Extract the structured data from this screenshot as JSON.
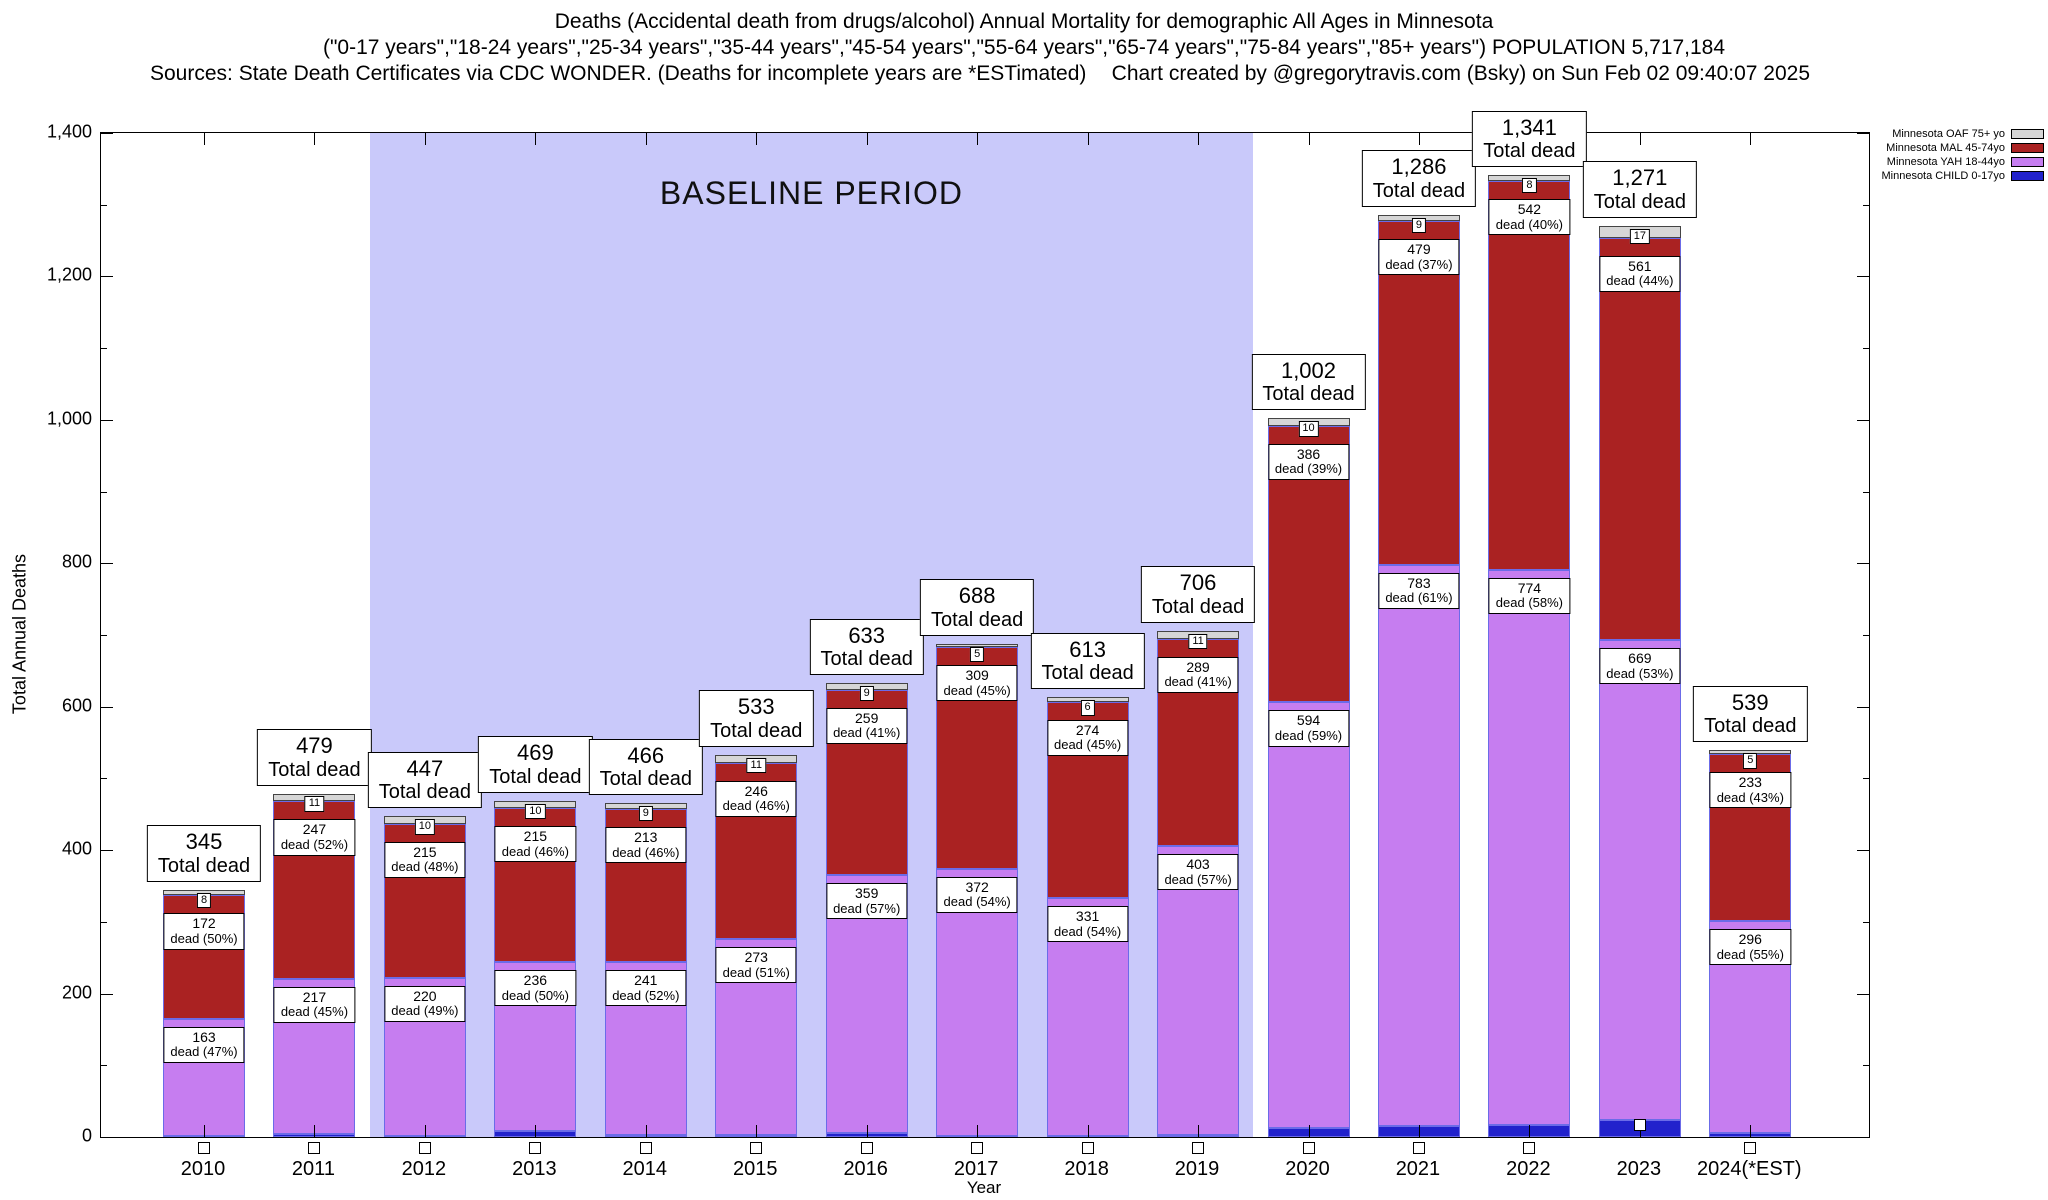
{
  "title": {
    "line1": "Deaths (Accidental death from drugs/alcohol) Annual Mortality for demographic All Ages in Minnesota",
    "line2": "(\"0-17 years\",\"18-24 years\",\"25-34 years\",\"35-44 years\",\"45-54 years\",\"55-64 years\",\"65-74 years\",\"75-84 years\",\"85+ years\") POPULATION 5,717,184",
    "line3_left": "Sources: State Death Certificates via CDC WONDER. (Deaths for incomplete years are *ESTimated)",
    "line3_right": "Chart created by @gregorytravis.com (Bsky) on Sun Feb 02 09:40:07 2025"
  },
  "chart_data": {
    "type": "bar",
    "stacked": true,
    "title": "Deaths (Accidental death from drugs/alcohol) Annual Mortality for demographic All Ages in Minnesota",
    "ylabel": "Total Annual Deaths",
    "xlabel": "Year",
    "ylim": [
      0,
      1400
    ],
    "y_ticks": [
      "0",
      "200",
      "400",
      "600",
      "800",
      "1,000",
      "1,200",
      "1,400"
    ],
    "categories": [
      "2010",
      "2011",
      "2012",
      "2013",
      "2014",
      "2015",
      "2016",
      "2017",
      "2018",
      "2019",
      "2020",
      "2021",
      "2022",
      "2023",
      "2024(*EST)"
    ],
    "series": [
      {
        "name": "Minnesota CHILD 0-17yo",
        "key": "child",
        "color": "#2222cc",
        "values": [
          2,
          4,
          2,
          8,
          3,
          3,
          6,
          2,
          2,
          3,
          12,
          15,
          17,
          24,
          5
        ]
      },
      {
        "name": "Minnesota YAH 18-44yo",
        "key": "yah",
        "color": "#c67df0",
        "values": [
          163,
          217,
          220,
          236,
          241,
          273,
          359,
          372,
          331,
          403,
          594,
          783,
          774,
          669,
          296
        ],
        "pct_labels": [
          "dead (47%)",
          "dead (45%)",
          "dead (49%)",
          "dead (50%)",
          "dead (52%)",
          "dead (51%)",
          "dead (57%)",
          "dead (54%)",
          "dead (54%)",
          "dead (57%)",
          "dead (59%)",
          "dead (61%)",
          "dead (58%)",
          "dead (53%)",
          "dead (55%)"
        ]
      },
      {
        "name": "Minnesota MAL 45-74yo",
        "key": "mal",
        "color": "#aa2222",
        "values": [
          172,
          247,
          215,
          215,
          213,
          246,
          259,
          309,
          274,
          289,
          386,
          479,
          542,
          561,
          233
        ],
        "pct_labels": [
          "dead (50%)",
          "dead (52%)",
          "dead (48%)",
          "dead (46%)",
          "dead (46%)",
          "dead (46%)",
          "dead (41%)",
          "dead (45%)",
          "dead (45%)",
          "dead (41%)",
          "dead (39%)",
          "dead (37%)",
          "dead (40%)",
          "dead (44%)",
          "dead (43%)"
        ]
      },
      {
        "name": "Minnesota OAF 75+ yo",
        "key": "oaf",
        "color": "#d6d6d6",
        "values": [
          8,
          11,
          10,
          10,
          9,
          11,
          9,
          5,
          6,
          11,
          10,
          9,
          8,
          17,
          5
        ]
      }
    ],
    "totals": [
      345,
      479,
      447,
      469,
      466,
      533,
      633,
      688,
      613,
      706,
      1002,
      1286,
      1341,
      1271,
      539
    ],
    "totals_display": [
      "345",
      "479",
      "447",
      "469",
      "466",
      "533",
      "633",
      "688",
      "613",
      "706",
      "1,002",
      "1,286",
      "1,341",
      "1,271",
      "539"
    ],
    "total_caption": "Total dead",
    "baseline_band": {
      "label": "BASELINE PERIOD",
      "from_category": "2012",
      "to_category": "2019",
      "color": "#c9c9fa"
    },
    "legend_position": "top-right",
    "grid": false
  }
}
